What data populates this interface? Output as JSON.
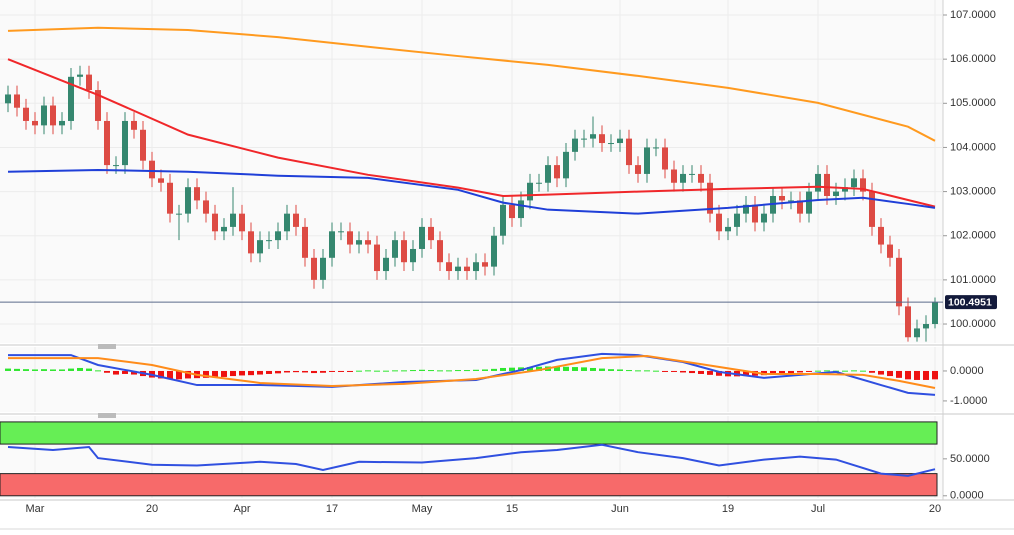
{
  "chart_data": [
    {
      "type": "candlestick",
      "categories": [
        null,
        null,
        null,
        "Mar",
        null,
        null,
        null,
        null,
        null,
        null,
        null,
        null,
        null,
        null,
        null,
        null,
        "20",
        null,
        null,
        null,
        null,
        null,
        null,
        null,
        null,
        null,
        "Apr",
        null,
        null,
        null,
        null,
        null,
        null,
        null,
        null,
        null,
        "17",
        null,
        null,
        null,
        null,
        null,
        null,
        null,
        null,
        null,
        "May",
        null,
        null,
        null,
        null,
        null,
        null,
        null,
        null,
        null,
        "15",
        null,
        null,
        null,
        null,
        null,
        null,
        null,
        null,
        null,
        null,
        null,
        "Jun",
        null,
        null,
        null,
        null,
        null,
        null,
        null,
        null,
        null,
        null,
        null,
        "19",
        null,
        null,
        null,
        null,
        null,
        null,
        null,
        null,
        null,
        "Jul",
        null,
        null,
        null,
        null,
        null,
        null,
        null,
        null,
        null,
        null,
        null,
        null,
        "20"
      ],
      "open": [
        105.0,
        105.2,
        104.9,
        104.6,
        104.5,
        104.95,
        104.5,
        104.6,
        105.6,
        105.65,
        105.3,
        104.6,
        103.6,
        103.6,
        104.6,
        104.4,
        103.7,
        103.3,
        103.2,
        102.5,
        102.5,
        103.1,
        102.8,
        102.5,
        102.1,
        102.2,
        102.5,
        102.1,
        101.6,
        101.9,
        101.9,
        102.1,
        102.5,
        102.2,
        101.5,
        101.0,
        101.5,
        102.1,
        102.1,
        101.8,
        101.9,
        101.8,
        101.2,
        101.5,
        101.9,
        101.4,
        101.7,
        102.2,
        101.9,
        101.4,
        101.2,
        101.3,
        101.2,
        101.4,
        101.3,
        102.0,
        102.7,
        102.4,
        102.8,
        103.2,
        103.2,
        103.6,
        103.3,
        103.9,
        104.2,
        104.2,
        104.3,
        104.1,
        104.1,
        104.2,
        103.6,
        103.4,
        104.0,
        104.0,
        103.5,
        103.2,
        103.4,
        103.4,
        103.2,
        102.5,
        102.1,
        102.2,
        102.5,
        102.7,
        102.3,
        102.5,
        102.9,
        102.8,
        102.8,
        102.5,
        103.0,
        103.4,
        102.9,
        103.0,
        103.1,
        103.3,
        103.0,
        102.2,
        101.8,
        101.5,
        100.4,
        99.7,
        99.9,
        100.0
      ],
      "high": [
        105.4,
        105.4,
        105.1,
        104.8,
        105.15,
        105.15,
        104.8,
        105.8,
        105.85,
        105.85,
        105.5,
        104.8,
        103.8,
        104.8,
        104.8,
        104.6,
        103.9,
        103.5,
        103.4,
        102.7,
        103.3,
        103.3,
        103.0,
        102.7,
        102.4,
        103.1,
        102.7,
        102.3,
        102.1,
        102.1,
        102.3,
        102.7,
        102.7,
        102.4,
        101.7,
        101.7,
        102.3,
        102.3,
        102.3,
        102.1,
        102.1,
        102.0,
        101.7,
        102.1,
        102.1,
        101.9,
        102.4,
        102.4,
        102.1,
        101.6,
        101.5,
        101.5,
        101.6,
        101.6,
        102.2,
        102.9,
        102.9,
        103.0,
        103.4,
        103.4,
        103.8,
        103.8,
        104.1,
        104.4,
        104.4,
        104.7,
        104.5,
        104.3,
        104.4,
        104.4,
        103.8,
        104.2,
        104.2,
        104.2,
        103.7,
        103.6,
        103.6,
        103.6,
        103.4,
        102.7,
        102.4,
        102.7,
        102.9,
        102.9,
        102.7,
        103.1,
        103.1,
        103.0,
        103.0,
        103.2,
        103.6,
        103.6,
        103.2,
        103.3,
        103.5,
        103.5,
        103.2,
        102.4,
        102.0,
        101.7,
        100.6,
        100.1,
        100.2,
        100.6
      ],
      "low": [
        104.8,
        104.7,
        104.4,
        104.3,
        104.3,
        104.3,
        104.3,
        104.4,
        105.4,
        105.1,
        104.4,
        103.4,
        103.4,
        103.4,
        104.2,
        103.5,
        103.1,
        103.0,
        102.3,
        101.9,
        102.3,
        102.6,
        102.3,
        101.9,
        101.9,
        102.0,
        101.9,
        101.4,
        101.4,
        101.7,
        101.7,
        101.9,
        102.0,
        101.3,
        100.8,
        100.8,
        101.3,
        101.9,
        101.6,
        101.6,
        101.6,
        101.0,
        101.0,
        101.3,
        101.2,
        101.2,
        101.5,
        101.7,
        101.2,
        101.0,
        101.0,
        101.0,
        101.0,
        101.1,
        101.1,
        101.8,
        102.2,
        102.2,
        102.6,
        103.0,
        103.0,
        103.1,
        103.1,
        103.7,
        104.0,
        104.0,
        103.9,
        103.9,
        103.9,
        103.4,
        103.2,
        103.2,
        103.8,
        103.3,
        103.0,
        103.0,
        103.2,
        103.0,
        102.3,
        101.9,
        101.9,
        102.0,
        102.3,
        102.1,
        102.1,
        102.3,
        102.6,
        102.6,
        102.3,
        102.3,
        102.8,
        102.7,
        102.7,
        102.8,
        102.9,
        102.8,
        102.0,
        101.6,
        101.3,
        100.2,
        99.6,
        99.6,
        99.6,
        99.9
      ],
      "close": [
        105.2,
        104.9,
        104.6,
        104.5,
        104.95,
        104.5,
        104.6,
        105.6,
        105.65,
        105.3,
        104.6,
        103.6,
        103.6,
        104.6,
        104.4,
        103.7,
        103.3,
        103.2,
        102.5,
        102.5,
        103.1,
        102.8,
        102.5,
        102.1,
        102.2,
        102.5,
        102.1,
        101.6,
        101.9,
        101.9,
        102.1,
        102.5,
        102.2,
        101.5,
        101.0,
        101.5,
        102.1,
        102.1,
        101.8,
        101.9,
        101.8,
        101.2,
        101.5,
        101.9,
        101.4,
        101.7,
        102.2,
        101.9,
        101.4,
        101.2,
        101.3,
        101.2,
        101.4,
        101.3,
        102.0,
        102.7,
        102.4,
        102.8,
        103.2,
        103.2,
        103.6,
        103.3,
        103.9,
        104.2,
        104.2,
        104.3,
        104.1,
        104.1,
        104.2,
        103.6,
        103.4,
        104.0,
        104.0,
        103.5,
        103.2,
        103.4,
        103.4,
        103.2,
        102.5,
        102.1,
        102.2,
        102.5,
        102.7,
        102.3,
        102.5,
        102.9,
        102.8,
        102.8,
        102.5,
        103.0,
        103.4,
        102.9,
        103.0,
        103.1,
        103.3,
        103.0,
        102.2,
        101.8,
        101.5,
        100.4,
        99.7,
        99.9,
        100.0,
        100.4951
      ],
      "up_color": "#35876f",
      "down_color": "#dd4b44",
      "series": [
        {
          "color": "#ff9a1f",
          "x": [
            0,
            10,
            20,
            30,
            40,
            50,
            60,
            70,
            80,
            90,
            100,
            103
          ],
          "values": [
            106.64,
            106.71,
            106.66,
            106.5,
            106.28,
            106.07,
            105.87,
            105.62,
            105.35,
            105.01,
            104.47,
            104.15
          ]
        },
        {
          "color": "#f0272a",
          "x": [
            0,
            10,
            20,
            30,
            40,
            50,
            55,
            60,
            70,
            80,
            90,
            95,
            100,
            103
          ],
          "values": [
            106.0,
            105.19,
            104.29,
            103.77,
            103.38,
            103.09,
            102.9,
            102.93,
            103.0,
            103.06,
            103.11,
            103.06,
            102.81,
            102.66
          ]
        },
        {
          "color": "#1f3fd8",
          "x": [
            0,
            10,
            20,
            30,
            40,
            50,
            55,
            60,
            70,
            80,
            90,
            95,
            100,
            103
          ],
          "values": [
            103.45,
            103.49,
            103.45,
            103.36,
            103.31,
            103.04,
            102.75,
            102.59,
            102.5,
            102.63,
            102.81,
            102.86,
            102.72,
            102.63
          ]
        }
      ],
      "last_price": 100.4951,
      "ylim": [
        99.57,
        107.34
      ],
      "yticks": [
        {
          "value": 100,
          "label": "100.0000"
        },
        {
          "value": 101,
          "label": "101.0000"
        },
        {
          "value": 102,
          "label": "102.0000"
        },
        {
          "value": 103,
          "label": "103.0000"
        },
        {
          "value": 104,
          "label": "104.0000"
        },
        {
          "value": 105,
          "label": "105.0000"
        },
        {
          "value": 106,
          "label": "106.0000"
        },
        {
          "value": 107,
          "label": "107.0000"
        }
      ],
      "grid": true
    },
    {
      "type": "macd",
      "histogram": {
        "up_color": "#2ee62e",
        "down_color": "#ee1111",
        "values": [
          0.08,
          0.07,
          0.06,
          0.05,
          0.06,
          0.05,
          0.05,
          0.08,
          0.1,
          0.08,
          0.02,
          -0.06,
          -0.12,
          -0.1,
          -0.12,
          -0.17,
          -0.22,
          -0.25,
          -0.27,
          -0.28,
          -0.25,
          -0.24,
          -0.23,
          -0.22,
          -0.2,
          -0.17,
          -0.15,
          -0.14,
          -0.12,
          -0.1,
          -0.08,
          -0.05,
          -0.04,
          -0.05,
          -0.07,
          -0.06,
          -0.03,
          -0.02,
          -0.01,
          0.01,
          0.02,
          0.01,
          0.01,
          0.02,
          0.02,
          0.03,
          0.04,
          0.03,
          0.02,
          0.02,
          0.03,
          0.03,
          0.04,
          0.05,
          0.07,
          0.1,
          0.11,
          0.12,
          0.13,
          0.14,
          0.15,
          0.14,
          0.14,
          0.13,
          0.12,
          0.1,
          0.08,
          0.06,
          0.05,
          0.03,
          0.02,
          0.02,
          0.01,
          -0.01,
          -0.03,
          -0.05,
          -0.07,
          -0.1,
          -0.13,
          -0.16,
          -0.18,
          -0.18,
          -0.17,
          -0.16,
          -0.14,
          -0.12,
          -0.1,
          -0.07,
          -0.05,
          -0.03,
          0.01,
          0.02,
          0.01,
          0.01,
          0.02,
          0.01,
          -0.06,
          -0.12,
          -0.17,
          -0.23,
          -0.28,
          -0.3,
          -0.3,
          -0.28
        ]
      },
      "series": [
        {
          "color": "#2f4fe0",
          "x": [
            0,
            7,
            10,
            16,
            21,
            28,
            36,
            44,
            52,
            57,
            61,
            66,
            70,
            75,
            79,
            84,
            88,
            92,
            97,
            100,
            103
          ],
          "values": [
            0.53,
            0.53,
            0.2,
            -0.13,
            -0.47,
            -0.47,
            -0.53,
            -0.37,
            -0.3,
            0.03,
            0.37,
            0.57,
            0.53,
            0.3,
            -0.03,
            -0.23,
            -0.13,
            -0.03,
            -0.47,
            -0.73,
            -0.8
          ]
        },
        {
          "color": "#ff8c1a",
          "x": [
            0,
            10,
            16,
            21,
            28,
            36,
            44,
            52,
            59,
            66,
            71,
            77,
            84,
            90,
            95,
            99,
            103
          ],
          "values": [
            0.43,
            0.43,
            0.2,
            -0.13,
            -0.4,
            -0.5,
            -0.43,
            -0.27,
            0.03,
            0.43,
            0.5,
            0.23,
            -0.1,
            -0.1,
            -0.13,
            -0.33,
            -0.57
          ]
        }
      ],
      "ylim": [
        -1.37,
        0.8
      ],
      "yticks": [
        {
          "value": -1,
          "label": "-1.0000"
        },
        {
          "value": 0,
          "label": "0.0000"
        }
      ]
    },
    {
      "type": "line",
      "zones": [
        {
          "range": [
            70,
            100
          ],
          "color": "#66ee55"
        },
        {
          "range": [
            0,
            30
          ],
          "color": "#f76a6a"
        }
      ],
      "series": [
        {
          "color": "#3050e0",
          "x": [
            0,
            5,
            9,
            10,
            16,
            21,
            28,
            32,
            35,
            39,
            46,
            52,
            57,
            61,
            66,
            70,
            75,
            79,
            84,
            88,
            92,
            97,
            100,
            103
          ],
          "values": [
            66,
            62,
            66,
            51,
            42,
            41,
            46,
            43,
            35,
            46,
            45,
            51,
            59,
            62,
            69,
            59,
            51,
            41,
            49,
            53,
            49,
            30,
            27,
            36
          ]
        }
      ],
      "ylim": [
        -3,
        108
      ],
      "yticks": [
        {
          "value": 0,
          "label": "0.0000"
        },
        {
          "value": 50,
          "label": "50.0000"
        }
      ]
    }
  ]
}
